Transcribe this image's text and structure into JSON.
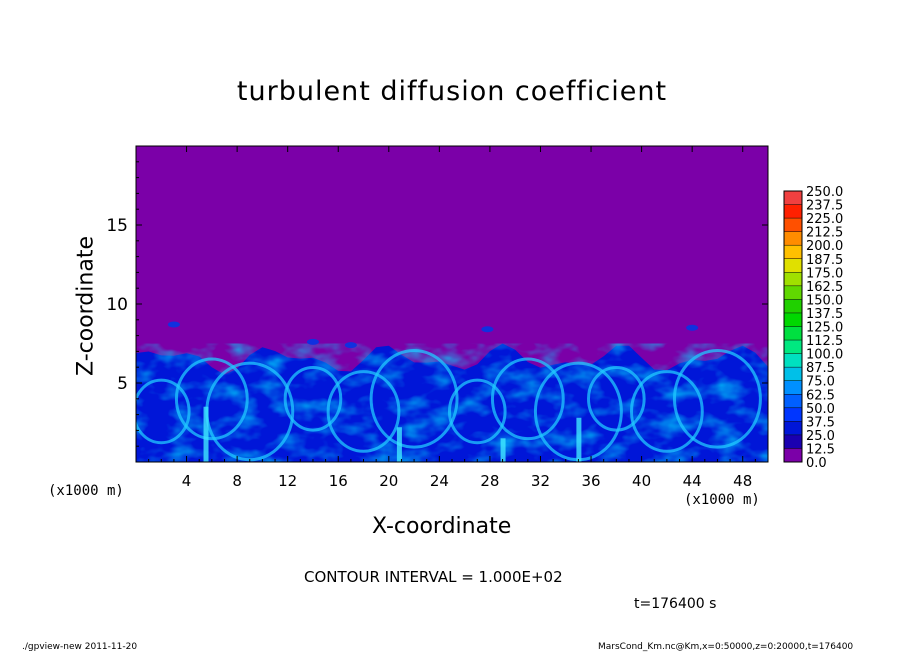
{
  "chart_data": {
    "type": "heatmap",
    "title": "turbulent diffusion coefficient",
    "xlabel": "X-coordinate",
    "ylabel": "Z-coordinate",
    "x_unit_label": "(x1000 m)",
    "xlim": [
      0,
      50
    ],
    "ylim": [
      0,
      20
    ],
    "x_ticks": [
      4,
      8,
      12,
      16,
      20,
      24,
      28,
      32,
      36,
      40,
      44,
      48
    ],
    "y_ticks": [
      5,
      10,
      15
    ],
    "colorbar": {
      "levels": [
        "0.0",
        "12.5",
        "25.0",
        "37.5",
        "50.0",
        "62.5",
        "75.0",
        "87.5",
        "100.0",
        "112.5",
        "125.0",
        "137.5",
        "150.0",
        "162.5",
        "175.0",
        "187.5",
        "200.0",
        "212.5",
        "225.0",
        "237.5",
        "250.0"
      ],
      "colors": [
        "#7b00a8",
        "#1a00b0",
        "#0016d8",
        "#0036ff",
        "#0060ff",
        "#0090ff",
        "#00c0e8",
        "#00e0c0",
        "#00e880",
        "#00e040",
        "#00d800",
        "#20d000",
        "#60d800",
        "#a0e000",
        "#e0e000",
        "#ffc000",
        "#ff8c00",
        "#ff5000",
        "#ff2000",
        "#f04040",
        "#f07878"
      ]
    },
    "field_description_levels": {
      "background_level": "0.0",
      "turbulent_layer_top_approx_km": 7
    },
    "contour_interval": "CONTOUR INTERVAL = 1.000E+02",
    "time_label": "t=176400 s"
  },
  "footer": {
    "left": "./gpview-new   2011-11-20",
    "right": "MarsCond_Km.nc@Km,x=0:50000,z=0:20000,t=176400"
  }
}
